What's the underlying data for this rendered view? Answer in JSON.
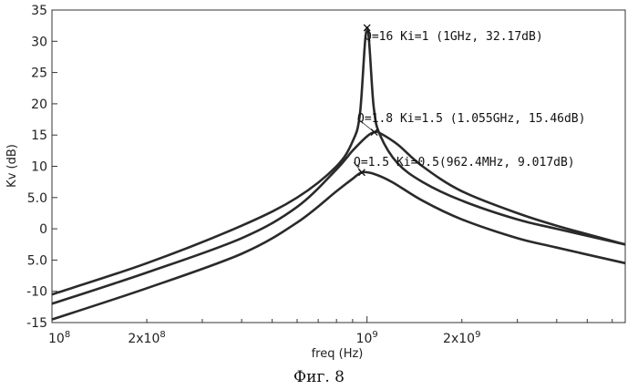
{
  "chart_data": {
    "type": "line",
    "title": "",
    "xlabel": "freq (Hz)",
    "ylabel": "Kv (dB)",
    "x_scale": "log",
    "xlim": [
      100000000,
      6600000000
    ],
    "ylim": [
      -15,
      35
    ],
    "grid": false,
    "yticks": [
      {
        "value": 35,
        "label": "35"
      },
      {
        "value": 30,
        "label": "30"
      },
      {
        "value": 25,
        "label": "25"
      },
      {
        "value": 20,
        "label": "20"
      },
      {
        "value": 15,
        "label": "15"
      },
      {
        "value": 10,
        "label": "10"
      },
      {
        "value": 5,
        "label": "5.0"
      },
      {
        "value": 0,
        "label": "0"
      },
      {
        "value": -5,
        "label": "5.0"
      },
      {
        "value": -10,
        "label": "-10"
      },
      {
        "value": -15,
        "label": "-15"
      }
    ],
    "xticks": [
      {
        "value": 100000000,
        "base": "10",
        "exp": "8"
      },
      {
        "value": 200000000,
        "base": "2x10",
        "exp": "8"
      },
      {
        "value": 1000000000,
        "base": "10",
        "exp": "9"
      },
      {
        "value": 2000000000,
        "base": "2x10",
        "exp": "9"
      }
    ],
    "series": [
      {
        "name": "Q=16 Ki=1",
        "x": [
          100000000,
          200000000,
          400000000,
          600000000,
          800000000,
          900000000,
          950000000,
          1000000000,
          1050000000,
          1100000000,
          1250000000,
          1500000000,
          2000000000,
          3000000000,
          4000000000,
          6600000000
        ],
        "y": [
          -10.5,
          -5.5,
          0.5,
          5.0,
          10.0,
          14.0,
          18.5,
          32.17,
          19.5,
          15.0,
          10.5,
          7.5,
          4.5,
          1.5,
          0.0,
          -2.5
        ]
      },
      {
        "name": "Q=1.8 Ki=1.5",
        "x": [
          100000000,
          200000000,
          400000000,
          600000000,
          800000000,
          900000000,
          1000000000,
          1055000000,
          1100000000,
          1250000000,
          1500000000,
          2000000000,
          3000000000,
          4000000000,
          6600000000
        ],
        "y": [
          -12.0,
          -7.0,
          -1.5,
          3.5,
          9.5,
          12.5,
          14.8,
          15.46,
          15.3,
          13.5,
          10.0,
          6.0,
          2.5,
          0.5,
          -2.5
        ]
      },
      {
        "name": "Q=1.5 Ki=0.5",
        "x": [
          100000000,
          200000000,
          400000000,
          600000000,
          800000000,
          900000000,
          962400000,
          1050000000,
          1200000000,
          1500000000,
          2000000000,
          3000000000,
          4000000000,
          6600000000
        ],
        "y": [
          -14.5,
          -9.5,
          -4.0,
          1.0,
          6.0,
          8.0,
          9.017,
          8.8,
          7.5,
          4.5,
          1.5,
          -1.5,
          -3.0,
          -5.5
        ]
      }
    ],
    "annotations": [
      {
        "text": "Q=16 Ki=1 (1GHz, 32.17dB)",
        "x": 1000000000,
        "y": 32.17
      },
      {
        "text": "Q=1.8 Ki=1.5 (1.055GHz, 15.46dB)",
        "x": 1055000000,
        "y": 15.46
      },
      {
        "text": "Q=1.5 Ki=0.5(962.4MHz, 9.017dB)",
        "x": 962400000,
        "y": 9.017
      }
    ]
  },
  "caption": "Фиг. 8"
}
